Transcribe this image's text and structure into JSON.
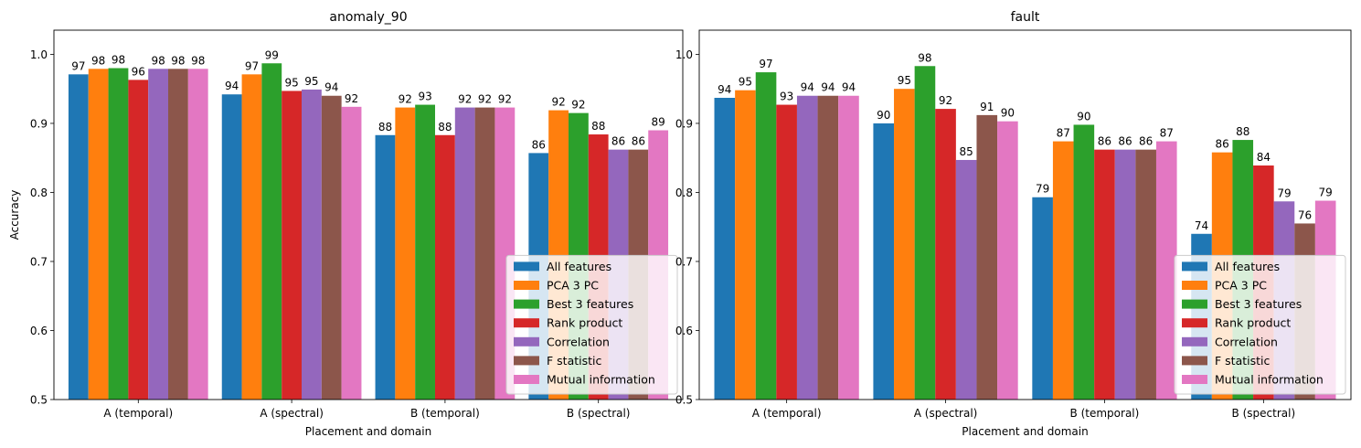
{
  "chart_data": [
    {
      "type": "bar",
      "title": "anomaly_90",
      "xlabel": "Placement and domain",
      "ylabel": "Accuracy",
      "ylim": [
        0.5,
        1.035
      ],
      "yticks": [
        0.5,
        0.6,
        0.7,
        0.8,
        0.9,
        1.0
      ],
      "ytick_labels": [
        "0.5",
        "0.6",
        "0.7",
        "0.8",
        "0.9",
        "1.0"
      ],
      "categories": [
        "A (temporal)",
        "A (spectral)",
        "B (temporal)",
        "B (spectral)"
      ],
      "legend_position": "lower-right",
      "grid": false,
      "series": [
        {
          "name": "All features",
          "color": "#1f77b4",
          "values": [
            0.971,
            0.942,
            0.883,
            0.857
          ],
          "labels": [
            "97",
            "94",
            "88",
            "86"
          ]
        },
        {
          "name": "PCA 3 PC",
          "color": "#ff7f0e",
          "values": [
            0.979,
            0.971,
            0.923,
            0.919
          ],
          "labels": [
            "98",
            "97",
            "92",
            "92"
          ]
        },
        {
          "name": "Best 3 features",
          "color": "#2ca02c",
          "values": [
            0.98,
            0.987,
            0.927,
            0.915
          ],
          "labels": [
            "98",
            "99",
            "93",
            "92"
          ]
        },
        {
          "name": "Rank product",
          "color": "#d62728",
          "values": [
            0.963,
            0.947,
            0.883,
            0.884
          ],
          "labels": [
            "96",
            "95",
            "88",
            "88"
          ]
        },
        {
          "name": "Correlation",
          "color": "#9467bd",
          "values": [
            0.979,
            0.949,
            0.923,
            0.862
          ],
          "labels": [
            "98",
            "95",
            "92",
            "86"
          ]
        },
        {
          "name": "F statistic",
          "color": "#8c564b",
          "values": [
            0.979,
            0.94,
            0.923,
            0.862
          ],
          "labels": [
            "98",
            "94",
            "92",
            "86"
          ]
        },
        {
          "name": "Mutual information",
          "color": "#e377c2",
          "values": [
            0.979,
            0.924,
            0.923,
            0.89
          ],
          "labels": [
            "98",
            "92",
            "92",
            "89"
          ]
        }
      ]
    },
    {
      "type": "bar",
      "title": "fault",
      "xlabel": "Placement and domain",
      "ylabel": "",
      "ylim": [
        0.5,
        1.035
      ],
      "yticks": [
        0.5,
        0.6,
        0.7,
        0.8,
        0.9,
        1.0
      ],
      "ytick_labels": [
        "0.5",
        "0.6",
        "0.7",
        "0.8",
        "0.9",
        "1.0"
      ],
      "categories": [
        "A (temporal)",
        "A (spectral)",
        "B (temporal)",
        "B (spectral)"
      ],
      "legend_position": "lower-right",
      "grid": false,
      "series": [
        {
          "name": "All features",
          "color": "#1f77b4",
          "values": [
            0.937,
            0.9,
            0.793,
            0.74
          ],
          "labels": [
            "94",
            "90",
            "79",
            "74"
          ]
        },
        {
          "name": "PCA 3 PC",
          "color": "#ff7f0e",
          "values": [
            0.948,
            0.95,
            0.874,
            0.858
          ],
          "labels": [
            "95",
            "95",
            "87",
            "86"
          ]
        },
        {
          "name": "Best 3 features",
          "color": "#2ca02c",
          "values": [
            0.974,
            0.983,
            0.898,
            0.876
          ],
          "labels": [
            "97",
            "98",
            "90",
            "88"
          ]
        },
        {
          "name": "Rank product",
          "color": "#d62728",
          "values": [
            0.927,
            0.921,
            0.862,
            0.839
          ],
          "labels": [
            "93",
            "92",
            "86",
            "84"
          ]
        },
        {
          "name": "Correlation",
          "color": "#9467bd",
          "values": [
            0.94,
            0.847,
            0.862,
            0.787
          ],
          "labels": [
            "94",
            "85",
            "86",
            "79"
          ]
        },
        {
          "name": "F statistic",
          "color": "#8c564b",
          "values": [
            0.94,
            0.912,
            0.862,
            0.755
          ],
          "labels": [
            "94",
            "91",
            "86",
            "76"
          ]
        },
        {
          "name": "Mutual information",
          "color": "#e377c2",
          "values": [
            0.94,
            0.903,
            0.874,
            0.788
          ],
          "labels": [
            "94",
            "90",
            "87",
            "79"
          ]
        }
      ]
    }
  ]
}
